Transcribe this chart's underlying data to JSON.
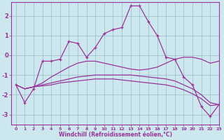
{
  "xlabel": "Windchill (Refroidissement éolien,°C)",
  "bg_color": "#cce8ee",
  "line_color": "#993399",
  "grid_color": "#99bbcc",
  "text_color": "#993399",
  "xlim": [
    -0.5,
    23
  ],
  "ylim": [
    -3.5,
    2.7
  ],
  "xticks": [
    0,
    1,
    2,
    3,
    4,
    5,
    6,
    7,
    8,
    9,
    10,
    11,
    12,
    13,
    14,
    15,
    16,
    17,
    18,
    19,
    20,
    21,
    22,
    23
  ],
  "yticks": [
    -3,
    -2,
    -1,
    0,
    1,
    2
  ],
  "series": [
    {
      "x": [
        0,
        1,
        2,
        3,
        4,
        5,
        6,
        7,
        8,
        9,
        10,
        11,
        12,
        13,
        14,
        15,
        16,
        17,
        18,
        19,
        20,
        21,
        22,
        23
      ],
      "y": [
        -1.5,
        -2.4,
        -1.7,
        -0.3,
        -0.3,
        -0.2,
        0.7,
        0.6,
        -0.1,
        0.4,
        1.1,
        1.3,
        1.4,
        2.5,
        2.5,
        1.7,
        1.0,
        -0.1,
        -0.2,
        -1.1,
        -1.5,
        -2.6,
        -3.1,
        -2.5
      ],
      "marker": true
    },
    {
      "x": [
        0,
        1,
        2,
        3,
        4,
        5,
        6,
        7,
        8,
        9,
        10,
        11,
        12,
        13,
        14,
        15,
        16,
        17,
        18,
        19,
        20,
        21,
        22,
        23
      ],
      "y": [
        -1.5,
        -1.7,
        -1.6,
        -1.5,
        -1.4,
        -1.3,
        -1.2,
        -1.1,
        -1.05,
        -1.0,
        -1.0,
        -1.0,
        -1.0,
        -1.0,
        -1.05,
        -1.1,
        -1.15,
        -1.2,
        -1.3,
        -1.5,
        -1.7,
        -2.0,
        -2.4,
        -2.5
      ],
      "marker": false
    },
    {
      "x": [
        0,
        1,
        2,
        3,
        4,
        5,
        6,
        7,
        8,
        9,
        10,
        11,
        12,
        13,
        14,
        15,
        16,
        17,
        18,
        19,
        20,
        21,
        22,
        23
      ],
      "y": [
        -1.5,
        -1.7,
        -1.6,
        -1.55,
        -1.5,
        -1.4,
        -1.35,
        -1.3,
        -1.25,
        -1.2,
        -1.2,
        -1.2,
        -1.25,
        -1.3,
        -1.35,
        -1.4,
        -1.45,
        -1.5,
        -1.6,
        -1.75,
        -1.95,
        -2.2,
        -2.55,
        -2.5
      ],
      "marker": false
    },
    {
      "x": [
        1,
        2,
        3,
        4,
        5,
        6,
        7,
        8,
        9,
        10,
        11,
        12,
        13,
        14,
        15,
        16,
        17,
        18,
        19,
        20,
        21,
        22,
        23
      ],
      "y": [
        -1.7,
        -1.6,
        -1.4,
        -1.1,
        -0.85,
        -0.6,
        -0.4,
        -0.3,
        -0.3,
        -0.4,
        -0.5,
        -0.6,
        -0.7,
        -0.75,
        -0.7,
        -0.6,
        -0.4,
        -0.2,
        -0.1,
        -0.1,
        -0.2,
        -0.4,
        -0.3
      ],
      "marker": false
    }
  ]
}
